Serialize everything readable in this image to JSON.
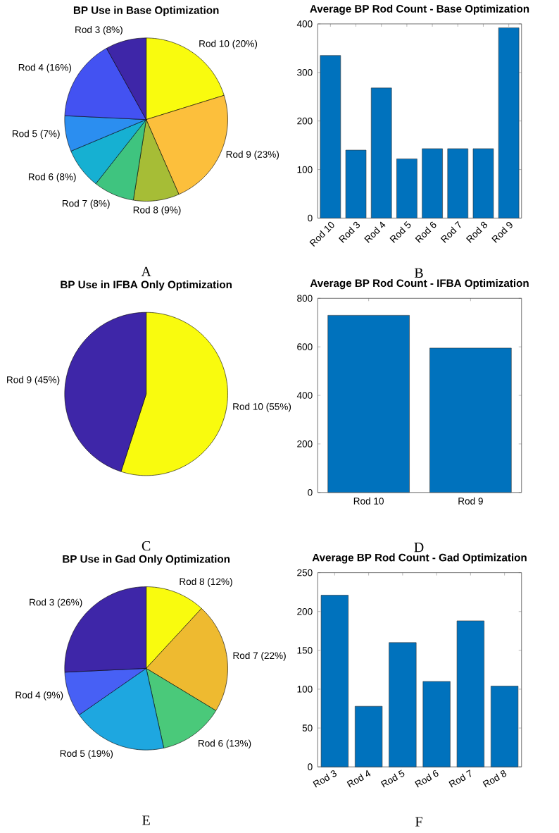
{
  "chart_data": [
    {
      "type": "pie",
      "title": "BP Use in Base Optimization",
      "categories": [
        "Rod 10 (20%)",
        "Rod 9 (23%)",
        "Rod 8 (9%)",
        "Rod 7 (8%)",
        "Rod 6 (8%)",
        "Rod 5 (7%)",
        "Rod 4 (16%)",
        "Rod 3 (8%)"
      ],
      "values": [
        20,
        23,
        9,
        8,
        8,
        7,
        16,
        8
      ],
      "colors": [
        "#f9fb0e",
        "#fcbf3c",
        "#a6bd36",
        "#3fc47f",
        "#16b0d2",
        "#2b8ef0",
        "#4352f2",
        "#3e26a8"
      ],
      "annotations": [
        "A"
      ]
    },
    {
      "type": "bar",
      "title": "Average BP Rod Count - Base Optimization",
      "categories": [
        "Rod 10",
        "Rod 3",
        "Rod 4",
        "Rod 5",
        "Rod 6",
        "Rod 7",
        "Rod 8",
        "Rod 9"
      ],
      "values": [
        335,
        140,
        268,
        122,
        143,
        143,
        143,
        392
      ],
      "color": "#0072bd",
      "ylim": [
        0,
        400
      ],
      "yticks": [
        0,
        100,
        200,
        300,
        400
      ],
      "annotations": [
        "B"
      ]
    },
    {
      "type": "pie",
      "title": "BP Use in IFBA Only Optimization",
      "categories": [
        "Rod 10 (55%)",
        "Rod 9 (45%)"
      ],
      "values": [
        55,
        45
      ],
      "colors": [
        "#f9fb0e",
        "#3e26a8"
      ],
      "annotations": [
        "C"
      ]
    },
    {
      "type": "bar",
      "title": "Average BP Rod Count - IFBA Optimization",
      "categories": [
        "Rod 10",
        "Rod 9"
      ],
      "values": [
        730,
        595
      ],
      "color": "#0072bd",
      "ylim": [
        0,
        800
      ],
      "yticks": [
        0,
        200,
        400,
        600,
        800
      ],
      "annotations": [
        "D"
      ]
    },
    {
      "type": "pie",
      "title": "BP Use in Gad Only Optimization",
      "categories": [
        "Rod 8 (12%)",
        "Rod 7 (22%)",
        "Rod 6 (13%)",
        "Rod 5 (19%)",
        "Rod 4 (9%)",
        "Rod 3 (26%)"
      ],
      "values": [
        12,
        22,
        13,
        19,
        9,
        26
      ],
      "colors": [
        "#f9fb0e",
        "#eeba30",
        "#4ac97a",
        "#1ea7e0",
        "#4760f5",
        "#3e26a8"
      ],
      "annotations": [
        "E"
      ]
    },
    {
      "type": "bar",
      "title": "Average BP Rod Count - Gad Optimization",
      "categories": [
        "Rod 3",
        "Rod 4",
        "Rod 5",
        "Rod 6",
        "Rod 7",
        "Rod 8"
      ],
      "values": [
        221,
        78,
        160,
        110,
        188,
        104
      ],
      "color": "#0072bd",
      "ylim": [
        0,
        250
      ],
      "yticks": [
        0,
        50,
        100,
        150,
        200,
        250
      ],
      "annotations": [
        "F"
      ]
    }
  ]
}
